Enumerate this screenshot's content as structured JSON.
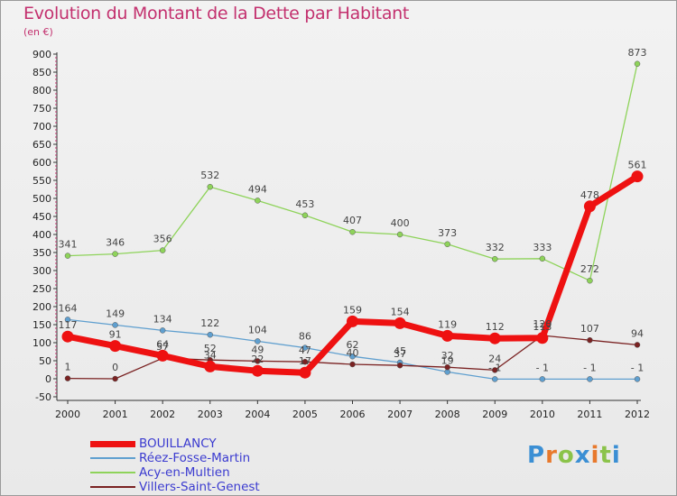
{
  "chart_data": {
    "type": "line",
    "title": "Evolution du Montant de la Dette par Habitant",
    "subtitle": "(en €)",
    "xlabel": "",
    "ylabel": "",
    "x": [
      "2000",
      "2001",
      "2002",
      "2003",
      "2004",
      "2005",
      "2006",
      "2007",
      "2008",
      "2009",
      "2010",
      "2011",
      "2012"
    ],
    "ylim": [
      -50,
      900
    ],
    "yticks": [
      -50,
      0,
      50,
      100,
      150,
      200,
      250,
      300,
      350,
      400,
      450,
      500,
      550,
      600,
      650,
      700,
      750,
      800,
      850,
      900
    ],
    "grid": false,
    "legend_position": "bottom-left",
    "series": [
      {
        "name": "BOUILLANCY",
        "color": "#ee1111",
        "emphasis": true,
        "values": [
          117,
          91,
          64,
          34,
          22,
          17,
          159,
          154,
          119,
          112,
          113,
          478,
          561
        ],
        "labels": [
          "117",
          "91",
          "64",
          "34",
          "22",
          "17",
          "159",
          "154",
          "119",
          "112",
          "113",
          "478",
          "561"
        ]
      },
      {
        "name": "Réez-Fosse-Martin",
        "color": "#5f9fcf",
        "emphasis": false,
        "values": [
          164,
          149,
          134,
          122,
          104,
          86,
          62,
          45,
          19,
          -1,
          -1,
          -1,
          -1
        ],
        "labels": [
          "164",
          "149",
          "134",
          "122",
          "104",
          "86",
          "62",
          "45",
          "19",
          "- 1",
          "- 1",
          "- 1",
          "- 1"
        ]
      },
      {
        "name": "Acy-en-Multien",
        "color": "#8ed35a",
        "emphasis": false,
        "values": [
          341,
          346,
          356,
          532,
          494,
          453,
          407,
          400,
          373,
          332,
          333,
          272,
          873
        ],
        "labels": [
          "341",
          "346",
          "356",
          "532",
          "494",
          "453",
          "407",
          "400",
          "373",
          "332",
          "333",
          "272",
          "873"
        ]
      },
      {
        "name": "Villers-Saint-Genest",
        "color": "#7a2222",
        "emphasis": false,
        "values": [
          1,
          0,
          57,
          52,
          49,
          47,
          40,
          37,
          32,
          24,
          120,
          107,
          94
        ],
        "labels": [
          "1",
          "0",
          "57",
          "52",
          "49",
          "47",
          "40",
          "37",
          "32",
          "24",
          "120",
          "107",
          "94"
        ]
      }
    ]
  },
  "logo": {
    "text": "Proxiti",
    "colors": [
      "#3b8fd4",
      "#e8792c",
      "#8bc34a",
      "#3b8fd4",
      "#e8792c",
      "#8bc34a",
      "#3b8fd4"
    ]
  }
}
